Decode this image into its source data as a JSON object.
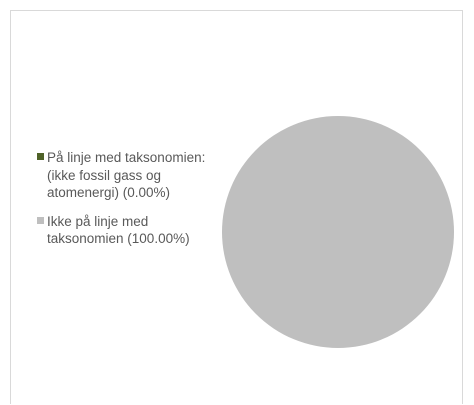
{
  "chart_data": {
    "type": "pie",
    "title": "",
    "categories": [
      "På linje med taksonomien: (ikke fossil gass og atomenergi) (0.00%)",
      "Ikke på linje med taksonomien (100.00%)"
    ],
    "values": [
      0.0,
      100.0
    ],
    "colors": [
      "#4f6228",
      "#bfbfbf"
    ],
    "legend_position": "left"
  }
}
